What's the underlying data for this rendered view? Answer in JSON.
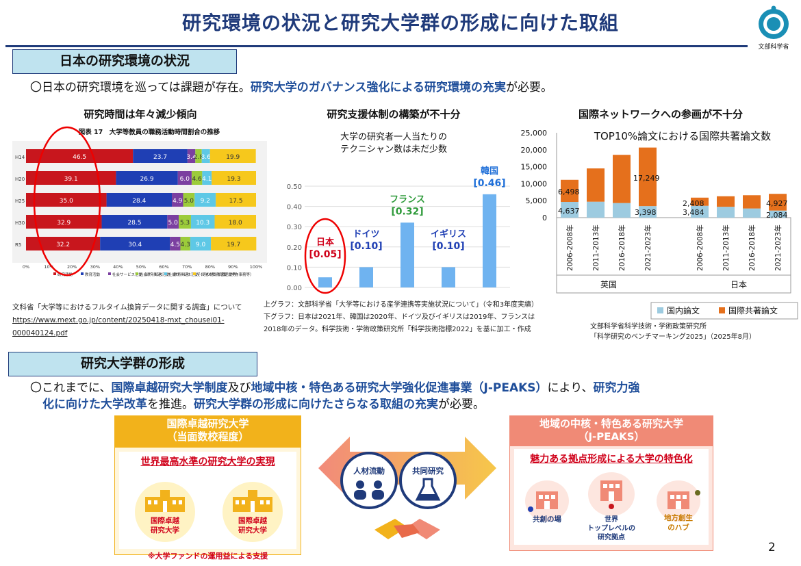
{
  "page": {
    "title": "研究環境の状況と研究大学群の形成に向けた取組",
    "ministry": "文部科学省",
    "page_number": "2"
  },
  "section1": {
    "heading": "日本の研究環境の状況",
    "lead_prefix": "〇日本の研究環境を巡っては課題が存在。",
    "lead_em": "研究大学のガバナンス強化による研究環境の充実",
    "lead_suffix": "が必要。"
  },
  "panel1": {
    "heading": "研究時間は年々減少傾向",
    "chart_title": "図表 17　大学等教員の職務活動時間割合の推移",
    "source_line1": "文科省「大学等におけるフルタイム換算データに関する調査」について",
    "source_line2": "https://www.mext.go.jp/content/20250418-mxt_chousei01-",
    "source_line3": "000040124.pdf"
  },
  "panel2": {
    "heading": "研究支援体制の構築が不十分",
    "chart_caption_line1": "大学の研究者一人当たりの",
    "chart_caption_line2": "テクニシャン数は未だ少数",
    "source_line1": "上グラフ：文部科学省「大学等における産学連携等実施状況について」（令和3年度実績）",
    "source_line2": "下グラフ：日本は2021年、韓国は2020年、ドイツ及びイギリスは2019年、フランスは",
    "source_line3": "2018年のデータ。科学技術・学術政策研究所「科学技術指標2022」を基に加工・作成"
  },
  "panel3": {
    "heading": "国際ネットワークへの参画が不十分",
    "chart_caption": "TOP10%論文における国際共著論文数",
    "source_line1": "文部科学省科学技術・学術政策研究所",
    "source_line2": "「科学研究のベンチマーキング2025」（2025年8月）"
  },
  "section2": {
    "heading": "研究大学群の形成",
    "line1_a": "〇これまでに、",
    "line1_b": "国際卓越研究大学制度",
    "line1_c": "及び",
    "line1_d": "地域中核・特色ある研究大学強化促進事業（J-PEAKS）",
    "line1_e": "により、",
    "line1_f": "研究力強",
    "line2_a": "化に向けた大学改革",
    "line2_b": "を推進。",
    "line2_c": "研究大学群の形成に向けたさらなる取組の充実",
    "line2_d": "が必要。"
  },
  "left_card": {
    "title_line1": "国際卓越研究大学",
    "title_line2": "（当面数校程度）",
    "subtitle": "世界最高水準の研究大学の実現",
    "uni1_line1": "国際卓越",
    "uni1_line2": "研究大学",
    "uni2_line1": "国際卓越",
    "uni2_line2": "研究大学",
    "footnote": "※大学ファンドの運用益による支援"
  },
  "center": {
    "circle1": "人材流動",
    "circle2": "共同研究"
  },
  "right_card": {
    "title_line1": "地域の中核・特色ある研究大学",
    "title_line2": "（J-PEAKS）",
    "subtitle": "魅力ある拠点形成による大学の特色化",
    "item1": "共創の場",
    "item2_line1": "世界",
    "item2_line2": "トップレベルの",
    "item2_line3": "研究拠点",
    "item3_line1": "地方創生",
    "item3_line2": "のハブ"
  },
  "colors": {
    "navy": "#1f3a7a",
    "emphasis": "#1f4e9a",
    "section_bg": "#bfe3ef",
    "orange_card": "#f2b21b",
    "salmon_card": "#f08a76",
    "bar_blue": "#6fb3f0",
    "domestic": "#9dcbe0",
    "intl": "#e5701c"
  },
  "chart_data": [
    {
      "type": "bar",
      "orientation": "horizontal-stacked",
      "title": "図表 17　大学等教員の職務活動時間割合の推移",
      "categories": [
        "H14",
        "H20",
        "H25",
        "H30",
        "R5"
      ],
      "series": [
        {
          "name": "研究活動",
          "color": "#c8161d",
          "values": [
            46.5,
            39.1,
            35.0,
            32.9,
            32.2
          ],
          "labels": [
            "46.5",
            "39.1",
            "35.0",
            "32.9",
            "32.2"
          ]
        },
        {
          "name": "教育活動",
          "color": "#1f3fb4",
          "values": [
            23.7,
            26.9,
            28.4,
            28.5,
            30.4
          ],
          "labels": [
            "23.7",
            "26.9",
            "28.4",
            "28.5",
            "30.4"
          ]
        },
        {
          "name": "社会サービス活動（研究関連）",
          "color": "#7b3fa0",
          "values": [
            3.4,
            6.0,
            4.9,
            5.0,
            4.5
          ],
          "labels": [
            "3.4",
            "6.0",
            "4.9",
            "5.0",
            "4.5"
          ]
        },
        {
          "name": "社会サービス活動（教育関連）",
          "color": "#9ccc3a",
          "values": [
            2.8,
            4.6,
            5.0,
            5.3,
            4.3
          ],
          "labels": [
            "2.8",
            "4.6",
            "5.0",
            "5.3",
            "4.3"
          ]
        },
        {
          "name": "社会サービス活動（その他：診療活動等）",
          "color": "#5ec8e6",
          "values": [
            3.6,
            4.1,
            9.2,
            10.3,
            9.0
          ],
          "labels": [
            "3.6",
            "4.1",
            "9.2",
            "10.3",
            "9.0"
          ]
        },
        {
          "name": "その他の職務活動（学内事務等）",
          "color": "#f6c81c",
          "values": [
            19.9,
            19.3,
            17.5,
            18.0,
            19.7
          ],
          "labels": [
            "19.9",
            "19.3",
            "17.5",
            "18.0",
            "19.7"
          ]
        }
      ],
      "xticks": [
        "0%",
        "10%",
        "20%",
        "30%",
        "40%",
        "50%",
        "60%",
        "70%",
        "80%",
        "90%",
        "100%"
      ],
      "xlim": [
        0,
        100
      ],
      "highlight": "研究活動"
    },
    {
      "type": "bar",
      "categories": [
        "日本",
        "ドイツ",
        "フランス",
        "イギリス",
        "韓国"
      ],
      "values": [
        0.05,
        0.1,
        0.32,
        0.1,
        0.46
      ],
      "value_labels": [
        "[0.05]",
        "[0.10]",
        "[0.32]",
        "[0.10]",
        "[0.46]"
      ],
      "label_colors": [
        "#d0021b",
        "#1f3fb4",
        "#2e9a3a",
        "#1f3fb4",
        "#1f6fd8"
      ],
      "yticks": [
        "0.00",
        "0.10",
        "0.20",
        "0.30",
        "0.40",
        "0.50"
      ],
      "ylim": [
        0,
        0.5
      ],
      "highlight": "日本"
    },
    {
      "type": "bar",
      "orientation": "vertical-stacked",
      "groups": [
        {
          "name": "英国",
          "categories": [
            "2006-2008年",
            "2011-2013年",
            "2016-2018年",
            "2021-2023年"
          ],
          "domestic": [
            4637,
            4700,
            4300,
            3398
          ],
          "intl": [
            6498,
            9800,
            14200,
            17249
          ]
        },
        {
          "name": "日本",
          "categories": [
            "2006-2008年",
            "2011-2013年",
            "2016-2018年",
            "2021-2023年"
          ],
          "domestic": [
            3484,
            3200,
            2700,
            2084
          ],
          "intl": [
            2408,
            3100,
            3900,
            4927
          ]
        }
      ],
      "point_labels": [
        "4,637",
        "6,498",
        "3,398",
        "17,249",
        "3,484",
        "2,408",
        "2,084",
        "4,927"
      ],
      "yticks": [
        "0",
        "5,000",
        "10,000",
        "15,000",
        "20,000",
        "25,000"
      ],
      "ylim": [
        0,
        25000
      ],
      "legend": [
        "国内論文",
        "国際共著論文"
      ],
      "legend_position": "bottom-right"
    }
  ]
}
